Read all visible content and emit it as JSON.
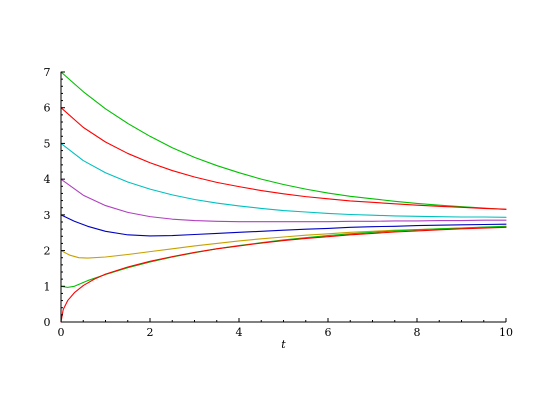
{
  "chart_data": {
    "type": "line",
    "title": "",
    "xlabel": "t",
    "ylabel": "",
    "xlim": [
      0,
      10
    ],
    "ylim": [
      0,
      7
    ],
    "x_ticks": [
      0,
      2,
      4,
      6,
      8,
      10
    ],
    "y_ticks": [
      0,
      1,
      2,
      3,
      4,
      5,
      6,
      7
    ],
    "x_tick_labels": [
      "0",
      "2",
      "4",
      "6",
      "8",
      "10"
    ],
    "y_tick_labels": [
      "0",
      "1",
      "2",
      "3",
      "4",
      "5",
      "6",
      "7"
    ],
    "grid": false,
    "legend": "none",
    "series": [
      {
        "color": "#00c000",
        "points": [
          [
            0,
            7.0
          ],
          [
            0.5,
            6.45
          ],
          [
            1,
            5.97
          ],
          [
            1.5,
            5.56
          ],
          [
            2,
            5.2
          ],
          [
            2.5,
            4.88
          ],
          [
            3,
            4.61
          ],
          [
            3.5,
            4.38
          ],
          [
            4,
            4.18
          ],
          [
            4.5,
            4.0
          ],
          [
            5,
            3.85
          ],
          [
            5.5,
            3.72
          ],
          [
            6,
            3.61
          ],
          [
            6.5,
            3.52
          ],
          [
            7,
            3.45
          ],
          [
            7.5,
            3.38
          ],
          [
            8,
            3.32
          ],
          [
            8.5,
            3.27
          ],
          [
            9,
            3.23
          ],
          [
            9.5,
            3.19
          ],
          [
            10,
            3.15
          ]
        ]
      },
      {
        "color": "#ff0000",
        "points": [
          [
            0,
            6.0
          ],
          [
            0.5,
            5.45
          ],
          [
            1,
            5.04
          ],
          [
            1.5,
            4.72
          ],
          [
            2,
            4.46
          ],
          [
            2.5,
            4.24
          ],
          [
            3,
            4.06
          ],
          [
            3.5,
            3.91
          ],
          [
            4,
            3.79
          ],
          [
            4.5,
            3.68
          ],
          [
            5,
            3.59
          ],
          [
            5.5,
            3.51
          ],
          [
            6,
            3.45
          ],
          [
            6.5,
            3.39
          ],
          [
            7,
            3.35
          ],
          [
            7.5,
            3.31
          ],
          [
            8,
            3.27
          ],
          [
            8.5,
            3.24
          ],
          [
            9,
            3.21
          ],
          [
            9.5,
            3.18
          ],
          [
            10,
            3.16
          ]
        ]
      },
      {
        "color": "#00c0c0",
        "points": [
          [
            0,
            5.0
          ],
          [
            0.5,
            4.52
          ],
          [
            1,
            4.18
          ],
          [
            1.5,
            3.92
          ],
          [
            2,
            3.72
          ],
          [
            2.5,
            3.56
          ],
          [
            3,
            3.43
          ],
          [
            3.5,
            3.33
          ],
          [
            4,
            3.25
          ],
          [
            4.5,
            3.18
          ],
          [
            5,
            3.12
          ],
          [
            5.5,
            3.08
          ],
          [
            6,
            3.04
          ],
          [
            6.5,
            3.01
          ],
          [
            7,
            2.99
          ],
          [
            7.5,
            2.97
          ],
          [
            8,
            2.96
          ],
          [
            8.5,
            2.95
          ],
          [
            9,
            2.94
          ],
          [
            9.5,
            2.94
          ],
          [
            10,
            2.93
          ]
        ]
      },
      {
        "color": "#b040c0",
        "points": [
          [
            0,
            4.0
          ],
          [
            0.5,
            3.55
          ],
          [
            1,
            3.26
          ],
          [
            1.5,
            3.07
          ],
          [
            2,
            2.95
          ],
          [
            2.5,
            2.88
          ],
          [
            3,
            2.84
          ],
          [
            3.5,
            2.82
          ],
          [
            4,
            2.81
          ],
          [
            4.5,
            2.81
          ],
          [
            5,
            2.81
          ],
          [
            5.5,
            2.81
          ],
          [
            6,
            2.81
          ],
          [
            6.5,
            2.82
          ],
          [
            7,
            2.82
          ],
          [
            7.5,
            2.83
          ],
          [
            8,
            2.83
          ],
          [
            8.5,
            2.84
          ],
          [
            9,
            2.84
          ],
          [
            9.5,
            2.85
          ],
          [
            10,
            2.85
          ]
        ]
      },
      {
        "color": "#0000c0",
        "points": [
          [
            0,
            3.0
          ],
          [
            0.3,
            2.82
          ],
          [
            0.6,
            2.68
          ],
          [
            1,
            2.54
          ],
          [
            1.5,
            2.44
          ],
          [
            2,
            2.41
          ],
          [
            2.5,
            2.42
          ],
          [
            3,
            2.45
          ],
          [
            3.5,
            2.48
          ],
          [
            4,
            2.51
          ],
          [
            4.5,
            2.54
          ],
          [
            5,
            2.57
          ],
          [
            5.5,
            2.6
          ],
          [
            6,
            2.62
          ],
          [
            6.5,
            2.65
          ],
          [
            7,
            2.67
          ],
          [
            7.5,
            2.68
          ],
          [
            8,
            2.7
          ],
          [
            8.5,
            2.71
          ],
          [
            9,
            2.72
          ],
          [
            9.5,
            2.73
          ],
          [
            10,
            2.74
          ]
        ]
      },
      {
        "color": "#c8a000",
        "points": [
          [
            0,
            2.0
          ],
          [
            0.2,
            1.87
          ],
          [
            0.4,
            1.8
          ],
          [
            0.6,
            1.79
          ],
          [
            1,
            1.82
          ],
          [
            1.5,
            1.89
          ],
          [
            2,
            1.97
          ],
          [
            2.5,
            2.05
          ],
          [
            3,
            2.13
          ],
          [
            3.5,
            2.2
          ],
          [
            4,
            2.27
          ],
          [
            4.5,
            2.33
          ],
          [
            5,
            2.38
          ],
          [
            5.5,
            2.43
          ],
          [
            6,
            2.47
          ],
          [
            6.5,
            2.51
          ],
          [
            7,
            2.54
          ],
          [
            7.5,
            2.57
          ],
          [
            8,
            2.59
          ],
          [
            8.5,
            2.61
          ],
          [
            9,
            2.63
          ],
          [
            9.5,
            2.65
          ],
          [
            10,
            2.66
          ]
        ]
      },
      {
        "color": "#00c000",
        "points": [
          [
            0,
            1.0
          ],
          [
            0.15,
            0.97
          ],
          [
            0.3,
            1.0
          ],
          [
            0.6,
            1.16
          ],
          [
            1,
            1.33
          ],
          [
            1.5,
            1.52
          ],
          [
            2,
            1.68
          ],
          [
            2.5,
            1.82
          ],
          [
            3,
            1.94
          ],
          [
            3.5,
            2.05
          ],
          [
            4,
            2.14
          ],
          [
            4.5,
            2.22
          ],
          [
            5,
            2.3
          ],
          [
            5.5,
            2.36
          ],
          [
            6,
            2.42
          ],
          [
            6.5,
            2.47
          ],
          [
            7,
            2.51
          ],
          [
            7.5,
            2.55
          ],
          [
            8,
            2.58
          ],
          [
            8.5,
            2.61
          ],
          [
            9,
            2.63
          ],
          [
            9.5,
            2.66
          ],
          [
            10,
            2.68
          ]
        ]
      },
      {
        "color": "#ff0000",
        "points": [
          [
            0,
            0.0
          ],
          [
            0.05,
            0.35
          ],
          [
            0.15,
            0.6
          ],
          [
            0.3,
            0.82
          ],
          [
            0.5,
            1.02
          ],
          [
            0.75,
            1.2
          ],
          [
            1,
            1.34
          ],
          [
            1.5,
            1.54
          ],
          [
            2,
            1.7
          ],
          [
            2.5,
            1.83
          ],
          [
            3,
            1.95
          ],
          [
            3.5,
            2.05
          ],
          [
            4,
            2.13
          ],
          [
            4.5,
            2.21
          ],
          [
            5,
            2.28
          ],
          [
            5.5,
            2.34
          ],
          [
            6,
            2.39
          ],
          [
            6.5,
            2.44
          ],
          [
            7,
            2.48
          ],
          [
            7.5,
            2.52
          ],
          [
            8,
            2.55
          ],
          [
            8.5,
            2.58
          ],
          [
            9,
            2.61
          ],
          [
            9.5,
            2.63
          ],
          [
            10,
            2.65
          ]
        ]
      }
    ]
  }
}
